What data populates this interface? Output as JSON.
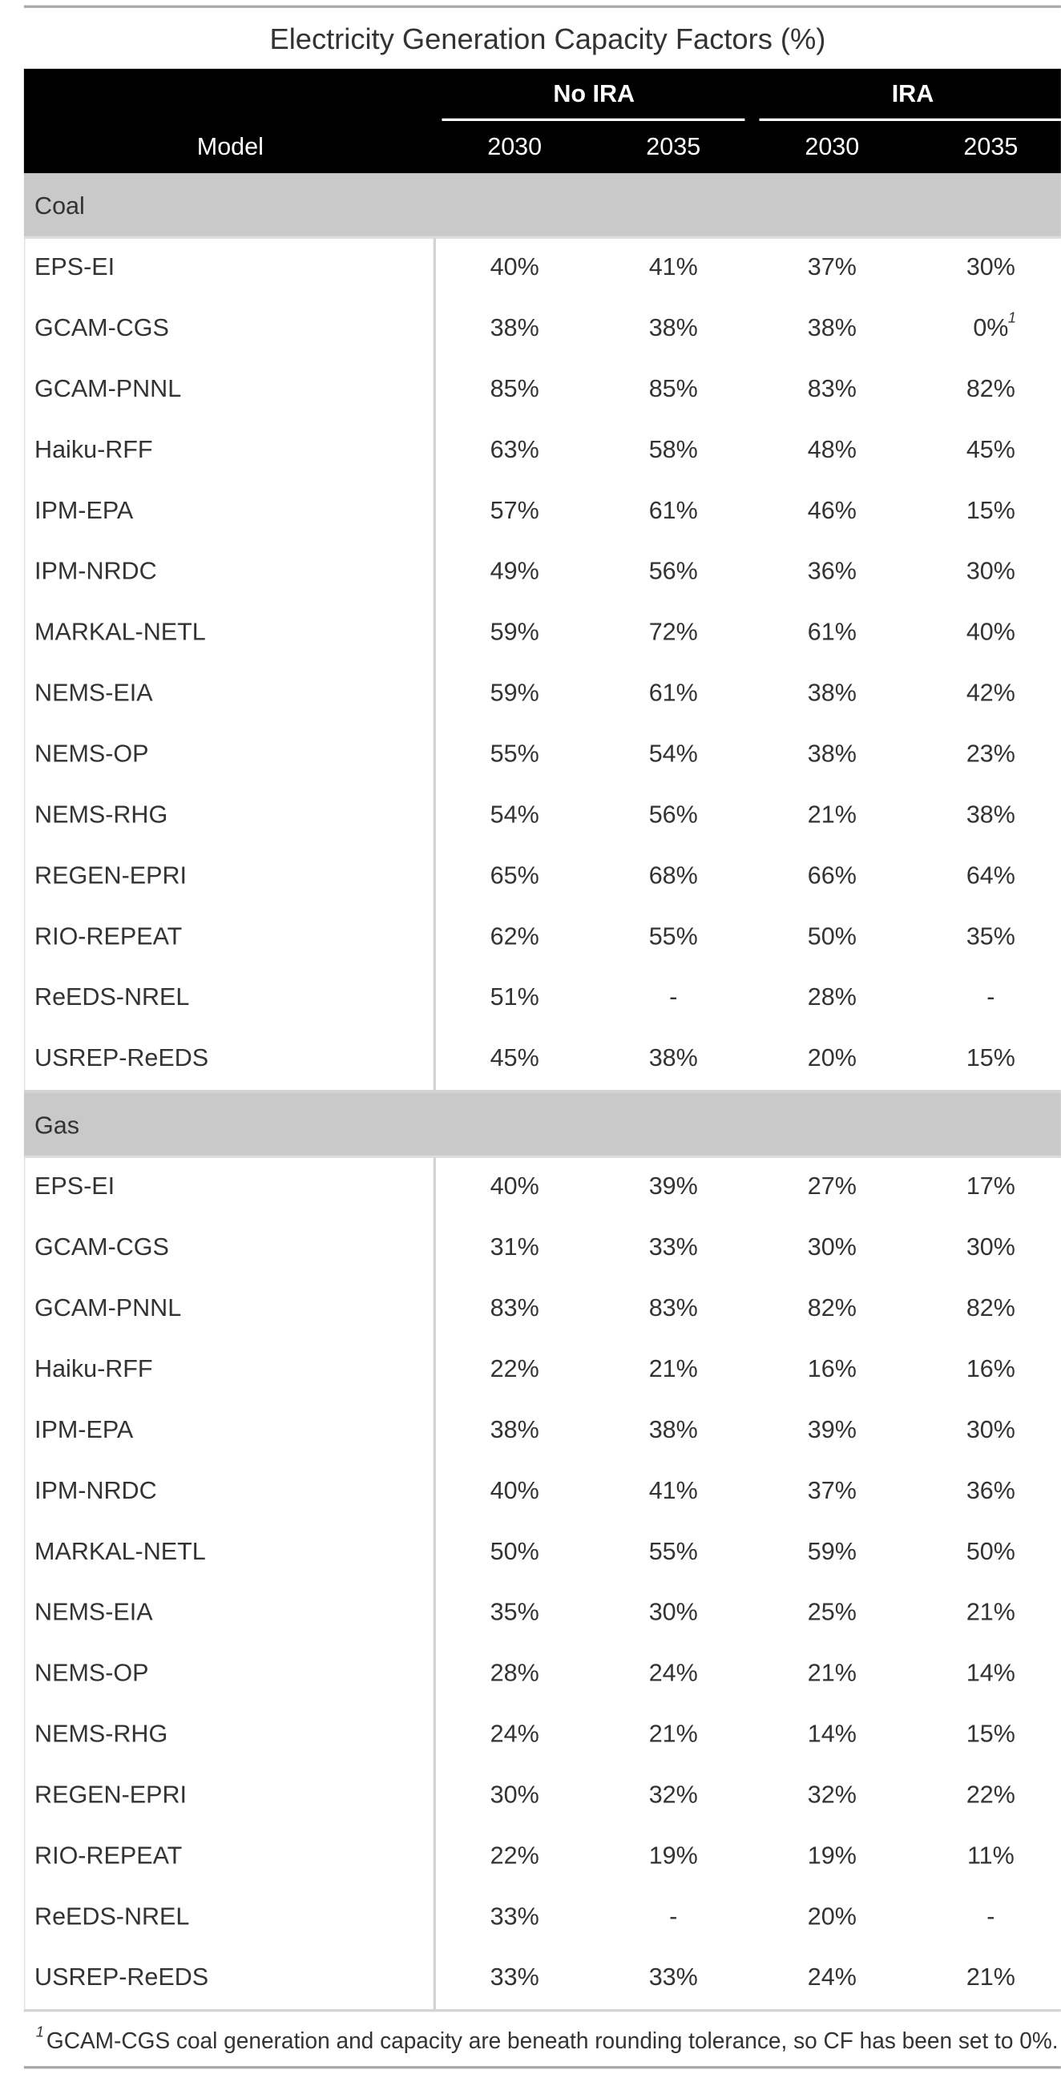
{
  "title": "Electricity Generation Capacity Factors (%)",
  "columns": {
    "stub": "Model",
    "spanners": [
      {
        "label": "No IRA",
        "years": [
          "2030",
          "2035"
        ]
      },
      {
        "label": "IRA",
        "years": [
          "2030",
          "2035"
        ]
      }
    ]
  },
  "groups": [
    {
      "label": "Coal",
      "rows": [
        [
          "EPS-EI",
          "40%",
          "41%",
          "37%",
          "30%"
        ],
        [
          "GCAM-CGS",
          "38%",
          "38%",
          "38%",
          {
            "text": "0%",
            "note": "1"
          }
        ],
        [
          "GCAM-PNNL",
          "85%",
          "85%",
          "83%",
          "82%"
        ],
        [
          "Haiku-RFF",
          "63%",
          "58%",
          "48%",
          "45%"
        ],
        [
          "IPM-EPA",
          "57%",
          "61%",
          "46%",
          "15%"
        ],
        [
          "IPM-NRDC",
          "49%",
          "56%",
          "36%",
          "30%"
        ],
        [
          "MARKAL-NETL",
          "59%",
          "72%",
          "61%",
          "40%"
        ],
        [
          "NEMS-EIA",
          "59%",
          "61%",
          "38%",
          "42%"
        ],
        [
          "NEMS-OP",
          "55%",
          "54%",
          "38%",
          "23%"
        ],
        [
          "NEMS-RHG",
          "54%",
          "56%",
          "21%",
          "38%"
        ],
        [
          "REGEN-EPRI",
          "65%",
          "68%",
          "66%",
          "64%"
        ],
        [
          "RIO-REPEAT",
          "62%",
          "55%",
          "50%",
          "35%"
        ],
        [
          "ReEDS-NREL",
          "51%",
          "-",
          "28%",
          "-"
        ],
        [
          "USREP-ReEDS",
          "45%",
          "38%",
          "20%",
          "15%"
        ]
      ]
    },
    {
      "label": "Gas",
      "rows": [
        [
          "EPS-EI",
          "40%",
          "39%",
          "27%",
          "17%"
        ],
        [
          "GCAM-CGS",
          "31%",
          "33%",
          "30%",
          "30%"
        ],
        [
          "GCAM-PNNL",
          "83%",
          "83%",
          "82%",
          "82%"
        ],
        [
          "Haiku-RFF",
          "22%",
          "21%",
          "16%",
          "16%"
        ],
        [
          "IPM-EPA",
          "38%",
          "38%",
          "39%",
          "30%"
        ],
        [
          "IPM-NRDC",
          "40%",
          "41%",
          "37%",
          "36%"
        ],
        [
          "MARKAL-NETL",
          "50%",
          "55%",
          "59%",
          "50%"
        ],
        [
          "NEMS-EIA",
          "35%",
          "30%",
          "25%",
          "21%"
        ],
        [
          "NEMS-OP",
          "28%",
          "24%",
          "21%",
          "14%"
        ],
        [
          "NEMS-RHG",
          "24%",
          "21%",
          "14%",
          "15%"
        ],
        [
          "REGEN-EPRI",
          "30%",
          "32%",
          "32%",
          "22%"
        ],
        [
          "RIO-REPEAT",
          "22%",
          "19%",
          "19%",
          "11%"
        ],
        [
          "ReEDS-NREL",
          "33%",
          "-",
          "20%",
          "-"
        ],
        [
          "USREP-ReEDS",
          "33%",
          "33%",
          "24%",
          "21%"
        ]
      ]
    }
  ],
  "footnote": {
    "mark": "1",
    "text": "GCAM-CGS coal generation and capacity are beneath rounding tolerance, so CF has been set to 0%."
  }
}
